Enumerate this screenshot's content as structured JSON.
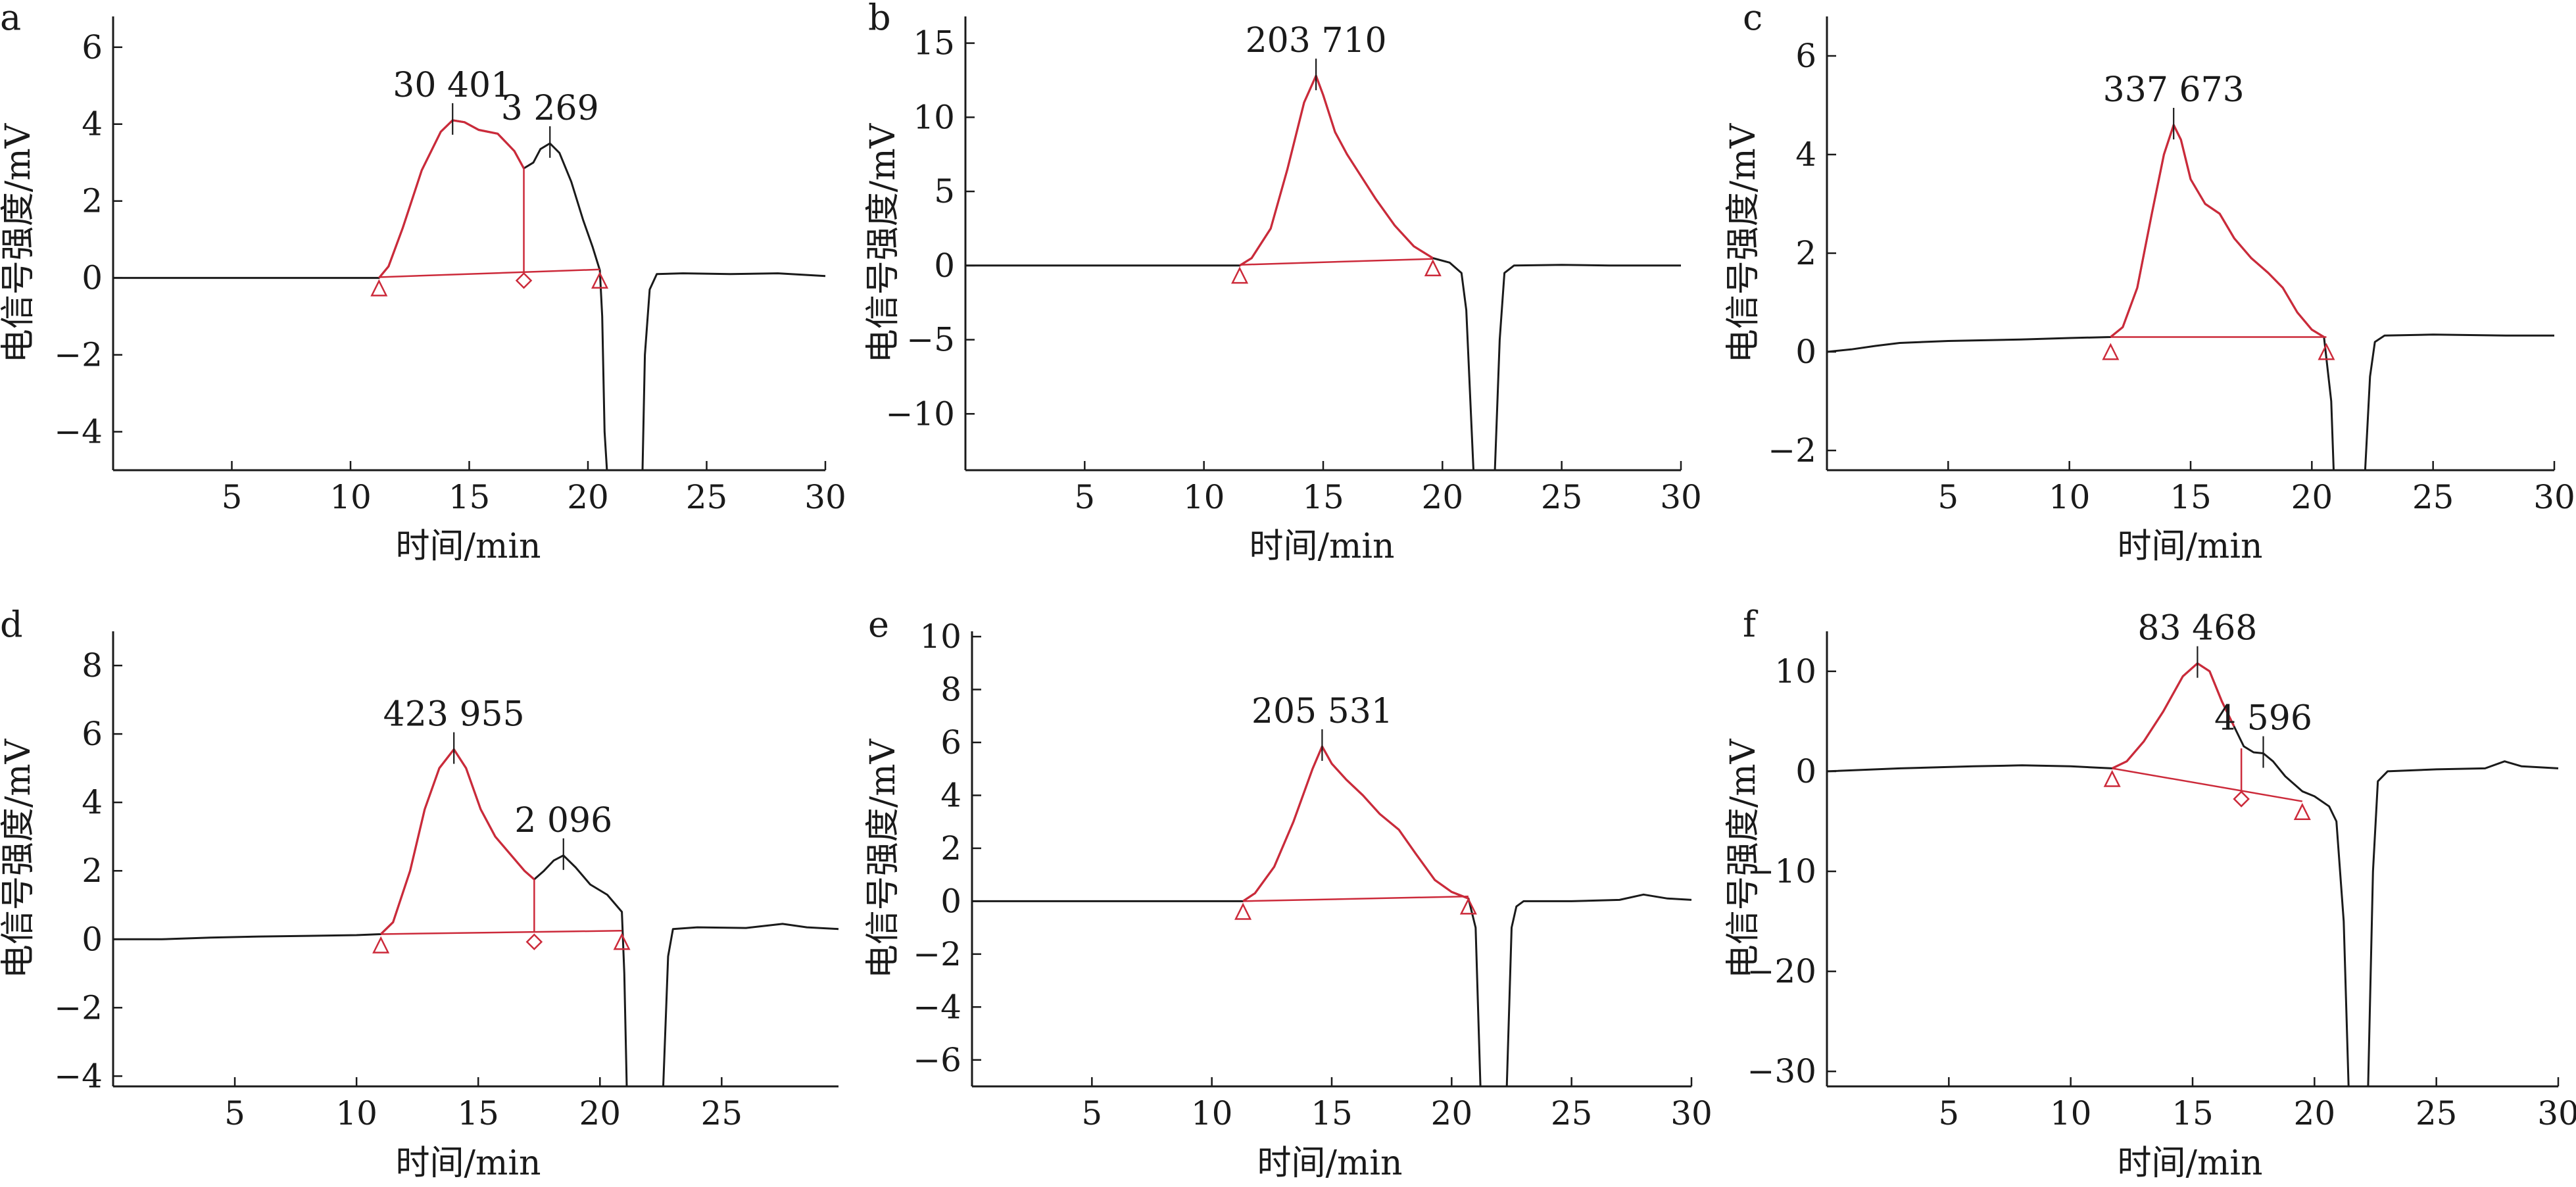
{
  "figure": {
    "x_axis_label": "时间/min",
    "y_axis_label": "电信号强度/mV",
    "colors": {
      "trace": "#1a1a1a",
      "integration": "#cc2a3a",
      "axis": "#1a1a1a"
    }
  },
  "chart_data": [
    {
      "panel": "a",
      "type": "line",
      "xlim": [
        0,
        30
      ],
      "ylim": [
        -5,
        6.8
      ],
      "xticks": [
        5,
        10,
        15,
        20,
        25,
        30
      ],
      "yticks": [
        -4,
        -2,
        0,
        2,
        4,
        6
      ],
      "series": [
        {
          "values": [
            [
              0,
              0
            ],
            [
              11.2,
              0
            ],
            [
              11.6,
              0.3
            ],
            [
              12.2,
              1.3
            ],
            [
              13,
              2.8
            ],
            [
              13.8,
              3.8
            ],
            [
              14.3,
              4.1
            ],
            [
              14.8,
              4.05
            ],
            [
              15.4,
              3.85
            ],
            [
              16.2,
              3.75
            ],
            [
              16.9,
              3.3
            ],
            [
              17.3,
              2.85
            ],
            [
              17.7,
              3.0
            ],
            [
              18.0,
              3.35
            ],
            [
              18.4,
              3.5
            ],
            [
              18.8,
              3.25
            ],
            [
              19.3,
              2.5
            ],
            [
              19.8,
              1.5
            ],
            [
              20.2,
              0.8
            ],
            [
              20.5,
              0.2
            ],
            [
              20.6,
              -1
            ],
            [
              20.7,
              -4
            ],
            [
              20.8,
              -5
            ],
            [
              22.3,
              -5
            ],
            [
              22.4,
              -2
            ],
            [
              22.6,
              -0.3
            ],
            [
              22.9,
              0.1
            ],
            [
              24,
              0.12
            ],
            [
              26,
              0.1
            ],
            [
              28,
              0.12
            ],
            [
              30,
              0.05
            ]
          ]
        }
      ],
      "integration": {
        "start": [
          11.2,
          0.02
        ],
        "end": [
          20.5,
          0.22
        ],
        "markers": [
          {
            "x": 11.2,
            "y": -0.2,
            "shape": "triangle"
          },
          {
            "x": 17.3,
            "y": 0.0,
            "shape": "diamond"
          },
          {
            "x": 20.5,
            "y": 0.0,
            "shape": "triangle"
          }
        ],
        "drops": [
          {
            "x": 17.3,
            "y_top": 2.85,
            "y_bottom": 0.15
          }
        ],
        "red_segments": [
          [
            11.2,
            17.3
          ]
        ]
      },
      "peaks": [
        {
          "label": "30 401",
          "x": 14.3,
          "y": 4.1
        },
        {
          "label": "3 269",
          "x": 18.4,
          "y": 3.5
        }
      ]
    },
    {
      "panel": "b",
      "type": "line",
      "xlim": [
        0,
        30
      ],
      "ylim": [
        -13.8,
        16.8
      ],
      "xticks": [
        5,
        10,
        15,
        20,
        25,
        30
      ],
      "yticks": [
        -10,
        -5,
        0,
        5,
        10,
        15
      ],
      "series": [
        {
          "values": [
            [
              0,
              0
            ],
            [
              11.5,
              0
            ],
            [
              12,
              0.5
            ],
            [
              12.8,
              2.5
            ],
            [
              13.5,
              6.5
            ],
            [
              14.2,
              11
            ],
            [
              14.7,
              12.8
            ],
            [
              15,
              11.5
            ],
            [
              15.5,
              9
            ],
            [
              16,
              7.5
            ],
            [
              16.6,
              6
            ],
            [
              17.2,
              4.5
            ],
            [
              18,
              2.7
            ],
            [
              18.8,
              1.3
            ],
            [
              19.6,
              0.5
            ],
            [
              20.3,
              0.2
            ],
            [
              20.8,
              -0.5
            ],
            [
              21.0,
              -3
            ],
            [
              21.3,
              -13.8
            ],
            [
              22.2,
              -13.8
            ],
            [
              22.4,
              -5
            ],
            [
              22.6,
              -0.5
            ],
            [
              23,
              0
            ],
            [
              25,
              0.05
            ],
            [
              27,
              0
            ],
            [
              30,
              0
            ]
          ]
        }
      ],
      "integration": {
        "start": [
          11.5,
          0.05
        ],
        "end": [
          19.6,
          0.45
        ],
        "markers": [
          {
            "x": 11.5,
            "y": -0.5,
            "shape": "triangle"
          },
          {
            "x": 19.6,
            "y": 0.0,
            "shape": "triangle"
          }
        ],
        "drops": [],
        "red_segments": [
          [
            11.5,
            19.6
          ]
        ]
      },
      "peaks": [
        {
          "label": "203 710",
          "x": 14.7,
          "y": 12.8
        }
      ]
    },
    {
      "panel": "c",
      "type": "line",
      "xlim": [
        0,
        30
      ],
      "ylim": [
        -2.4,
        6.8
      ],
      "xticks": [
        5,
        10,
        15,
        20,
        25,
        30
      ],
      "yticks": [
        -2,
        0,
        2,
        4,
        6
      ],
      "series": [
        {
          "values": [
            [
              0,
              0
            ],
            [
              1,
              0.05
            ],
            [
              2,
              0.12
            ],
            [
              3,
              0.18
            ],
            [
              5,
              0.22
            ],
            [
              8,
              0.25
            ],
            [
              10,
              0.28
            ],
            [
              11.7,
              0.3
            ],
            [
              12.2,
              0.5
            ],
            [
              12.8,
              1.3
            ],
            [
              13.4,
              2.8
            ],
            [
              13.9,
              4.0
            ],
            [
              14.3,
              4.6
            ],
            [
              14.6,
              4.3
            ],
            [
              15,
              3.5
            ],
            [
              15.6,
              3.0
            ],
            [
              16.2,
              2.8
            ],
            [
              16.8,
              2.3
            ],
            [
              17.5,
              1.9
            ],
            [
              18.2,
              1.6
            ],
            [
              18.8,
              1.3
            ],
            [
              19.4,
              0.8
            ],
            [
              20,
              0.45
            ],
            [
              20.5,
              0.3
            ],
            [
              20.8,
              -1
            ],
            [
              20.9,
              -2.4
            ],
            [
              22.2,
              -2.4
            ],
            [
              22.4,
              -0.5
            ],
            [
              22.6,
              0.2
            ],
            [
              23,
              0.33
            ],
            [
              25,
              0.35
            ],
            [
              28,
              0.33
            ],
            [
              30,
              0.33
            ]
          ]
        }
      ],
      "integration": {
        "start": [
          11.7,
          0.3
        ],
        "end": [
          20.6,
          0.3
        ],
        "markers": [
          {
            "x": 11.7,
            "y": 0.05,
            "shape": "triangle"
          },
          {
            "x": 20.6,
            "y": 0.05,
            "shape": "triangle"
          }
        ],
        "drops": [],
        "red_segments": [
          [
            11.7,
            20.6
          ]
        ]
      },
      "peaks": [
        {
          "label": "337 673",
          "x": 14.3,
          "y": 4.6
        }
      ]
    },
    {
      "panel": "d",
      "type": "line",
      "xlim": [
        0,
        29.8
      ],
      "ylim": [
        -4.3,
        9
      ],
      "xticks": [
        5,
        10,
        15,
        20,
        25
      ],
      "yticks": [
        -4,
        -2,
        0,
        2,
        4,
        6,
        8
      ],
      "series": [
        {
          "values": [
            [
              0,
              0
            ],
            [
              2,
              0
            ],
            [
              4,
              0.05
            ],
            [
              6,
              0.08
            ],
            [
              8,
              0.1
            ],
            [
              10,
              0.12
            ],
            [
              11,
              0.15
            ],
            [
              11.5,
              0.5
            ],
            [
              12.2,
              2.0
            ],
            [
              12.8,
              3.8
            ],
            [
              13.4,
              5.0
            ],
            [
              14,
              5.55
            ],
            [
              14.5,
              5.0
            ],
            [
              15.1,
              3.8
            ],
            [
              15.7,
              3.0
            ],
            [
              16.3,
              2.5
            ],
            [
              16.9,
              2.0
            ],
            [
              17.3,
              1.75
            ],
            [
              17.7,
              2.0
            ],
            [
              18.1,
              2.3
            ],
            [
              18.5,
              2.45
            ],
            [
              19,
              2.1
            ],
            [
              19.6,
              1.6
            ],
            [
              20.3,
              1.3
            ],
            [
              20.9,
              0.8
            ],
            [
              21,
              -1
            ],
            [
              21.1,
              -4.3
            ],
            [
              22.6,
              -4.3
            ],
            [
              22.8,
              -0.5
            ],
            [
              23,
              0.3
            ],
            [
              24,
              0.35
            ],
            [
              26,
              0.33
            ],
            [
              27.5,
              0.45
            ],
            [
              28.5,
              0.35
            ],
            [
              29.8,
              0.3
            ]
          ]
        }
      ],
      "integration": {
        "start": [
          11.0,
          0.15
        ],
        "end": [
          20.9,
          0.25
        ],
        "markers": [
          {
            "x": 11.0,
            "y": -0.1,
            "shape": "triangle"
          },
          {
            "x": 17.3,
            "y": 0.0,
            "shape": "diamond"
          },
          {
            "x": 20.9,
            "y": 0.0,
            "shape": "triangle"
          }
        ],
        "drops": [
          {
            "x": 17.3,
            "y_top": 1.75,
            "y_bottom": 0.2
          }
        ],
        "red_segments": [
          [
            11.0,
            17.3
          ]
        ]
      },
      "peaks": [
        {
          "label": "423 955",
          "x": 14.0,
          "y": 5.55
        },
        {
          "label": "2 096",
          "x": 18.5,
          "y": 2.45
        }
      ]
    },
    {
      "panel": "e",
      "type": "line",
      "xlim": [
        0,
        30
      ],
      "ylim": [
        -7,
        10.2
      ],
      "xticks": [
        5,
        10,
        15,
        20,
        25,
        30
      ],
      "yticks": [
        -6,
        -4,
        -2,
        0,
        2,
        4,
        6,
        8,
        10
      ],
      "series": [
        {
          "values": [
            [
              0,
              0
            ],
            [
              11.3,
              0
            ],
            [
              11.8,
              0.3
            ],
            [
              12.6,
              1.3
            ],
            [
              13.4,
              3.0
            ],
            [
              14.2,
              5.0
            ],
            [
              14.6,
              5.85
            ],
            [
              15,
              5.2
            ],
            [
              15.6,
              4.6
            ],
            [
              16.3,
              4.0
            ],
            [
              17,
              3.3
            ],
            [
              17.8,
              2.7
            ],
            [
              18.5,
              1.8
            ],
            [
              19.3,
              0.8
            ],
            [
              20,
              0.35
            ],
            [
              20.7,
              0.1
            ],
            [
              21,
              -1
            ],
            [
              21.2,
              -7
            ],
            [
              22.3,
              -7
            ],
            [
              22.5,
              -1
            ],
            [
              22.7,
              -0.2
            ],
            [
              23,
              0
            ],
            [
              25,
              0
            ],
            [
              27,
              0.05
            ],
            [
              28,
              0.25
            ],
            [
              29,
              0.1
            ],
            [
              30,
              0.05
            ]
          ]
        }
      ],
      "integration": {
        "start": [
          11.3,
          0.0
        ],
        "end": [
          20.7,
          0.18
        ],
        "markers": [
          {
            "x": 11.3,
            "y": -0.3,
            "shape": "triangle"
          },
          {
            "x": 20.7,
            "y": -0.1,
            "shape": "triangle"
          }
        ],
        "drops": [],
        "red_segments": [
          [
            11.3,
            20.7
          ]
        ]
      },
      "peaks": [
        {
          "label": "205 531",
          "x": 14.6,
          "y": 5.85
        }
      ]
    },
    {
      "panel": "f",
      "type": "line",
      "xlim": [
        0,
        30
      ],
      "ylim": [
        -31.5,
        14
      ],
      "xticks": [
        5,
        10,
        15,
        20,
        25,
        30
      ],
      "yticks": [
        -30,
        -20,
        -10,
        0,
        10
      ],
      "series": [
        {
          "values": [
            [
              0,
              0
            ],
            [
              3,
              0.3
            ],
            [
              6,
              0.5
            ],
            [
              8,
              0.6
            ],
            [
              10,
              0.5
            ],
            [
              11.7,
              0.3
            ],
            [
              12.3,
              1
            ],
            [
              13,
              3
            ],
            [
              13.8,
              6
            ],
            [
              14.6,
              9.5
            ],
            [
              15.2,
              10.8
            ],
            [
              15.7,
              10
            ],
            [
              16.2,
              7
            ],
            [
              16.7,
              4.5
            ],
            [
              17.1,
              2.5
            ],
            [
              17.5,
              1.9
            ],
            [
              17.9,
              1.8
            ],
            [
              18.3,
              1.0
            ],
            [
              18.8,
              -0.5
            ],
            [
              19.5,
              -2.0
            ],
            [
              20,
              -2.5
            ],
            [
              20.6,
              -3.5
            ],
            [
              20.9,
              -5
            ],
            [
              21.2,
              -15
            ],
            [
              21.4,
              -31.5
            ],
            [
              22.2,
              -31.5
            ],
            [
              22.4,
              -10
            ],
            [
              22.6,
              -1
            ],
            [
              23,
              0
            ],
            [
              25,
              0.2
            ],
            [
              27,
              0.3
            ],
            [
              27.8,
              1.0
            ],
            [
              28.5,
              0.5
            ],
            [
              30,
              0.3
            ]
          ]
        }
      ],
      "integration": {
        "start": [
          11.7,
          0.3
        ],
        "end": [
          19.5,
          -3.0
        ],
        "markers": [
          {
            "x": 11.7,
            "y": -0.5,
            "shape": "triangle"
          },
          {
            "x": 17.0,
            "y": -2.5,
            "shape": "diamond"
          },
          {
            "x": 19.5,
            "y": -3.8,
            "shape": "triangle"
          }
        ],
        "drops": [
          {
            "x": 17.0,
            "y_top": 2.3,
            "y_bottom": -1.9
          }
        ],
        "red_segments": [
          [
            11.7,
            17.0
          ]
        ]
      },
      "peaks": [
        {
          "label": "83 468",
          "x": 15.2,
          "y": 10.8
        },
        {
          "label": "4 596",
          "x": 17.9,
          "y": 1.8
        }
      ]
    }
  ]
}
